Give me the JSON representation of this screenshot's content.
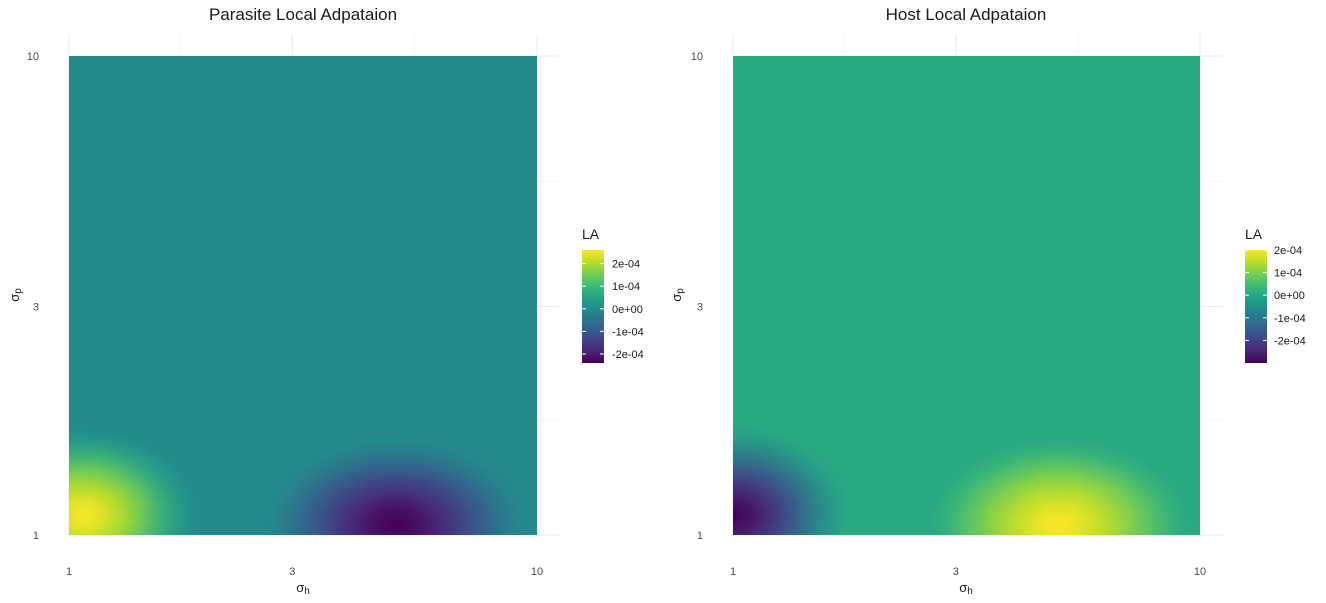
{
  "chart_data": [
    {
      "type": "heatmap",
      "title": "Parasite Local Adpataion",
      "xlabel_base": "σ",
      "xlabel_sub": "h",
      "ylabel_base": "σ",
      "ylabel_sub": "p",
      "x_scale": "log",
      "y_scale": "log",
      "xlim": [
        1,
        10
      ],
      "ylim": [
        1,
        10
      ],
      "x_ticks": [
        "1",
        "3",
        "10"
      ],
      "y_ticks": [
        "1",
        "3",
        "10"
      ],
      "grid": true,
      "legend": {
        "title": "LA",
        "position": "right",
        "range": [
          -0.00024,
          0.00026
        ],
        "ticks": [
          "2e-04",
          "1e-04",
          "0e+00",
          "-1e-04",
          "-2e-04"
        ],
        "tick_values": [
          0.0002,
          0.0001,
          0,
          -0.0001,
          -0.0002
        ]
      },
      "background_value": 0.0,
      "field": [
        {
          "x": 1.07,
          "y": 1.1,
          "value": 0.00026
        },
        {
          "x": 5.0,
          "y": 1.05,
          "value": -0.00024
        }
      ]
    },
    {
      "type": "heatmap",
      "title": "Host Local Adpataion",
      "xlabel_base": "σ",
      "xlabel_sub": "h",
      "ylabel_base": "σ",
      "ylabel_sub": "p",
      "x_scale": "log",
      "y_scale": "log",
      "xlim": [
        1,
        10
      ],
      "ylim": [
        1,
        10
      ],
      "x_ticks": [
        "1",
        "3",
        "10"
      ],
      "y_ticks": [
        "1",
        "3",
        "10"
      ],
      "grid": true,
      "legend": {
        "title": "LA",
        "position": "right",
        "range": [
          -0.0003,
          0.0002
        ],
        "ticks": [
          "2e-04",
          "1e-04",
          "0e+00",
          "-1e-04",
          "-2e-04"
        ],
        "tick_values": [
          0.0002,
          0.0001,
          0,
          -0.0001,
          -0.0002
        ]
      },
      "background_value": 0.0,
      "field": [
        {
          "x": 1.0,
          "y": 1.1,
          "value": -0.0003
        },
        {
          "x": 5.0,
          "y": 1.05,
          "value": 0.0002
        }
      ]
    }
  ],
  "colormap": {
    "name": "viridis",
    "stops": [
      "#440154",
      "#482878",
      "#3e4989",
      "#31688e",
      "#26828e",
      "#1f9e89",
      "#35b779",
      "#6ece58",
      "#b5de2b",
      "#fde725"
    ]
  }
}
